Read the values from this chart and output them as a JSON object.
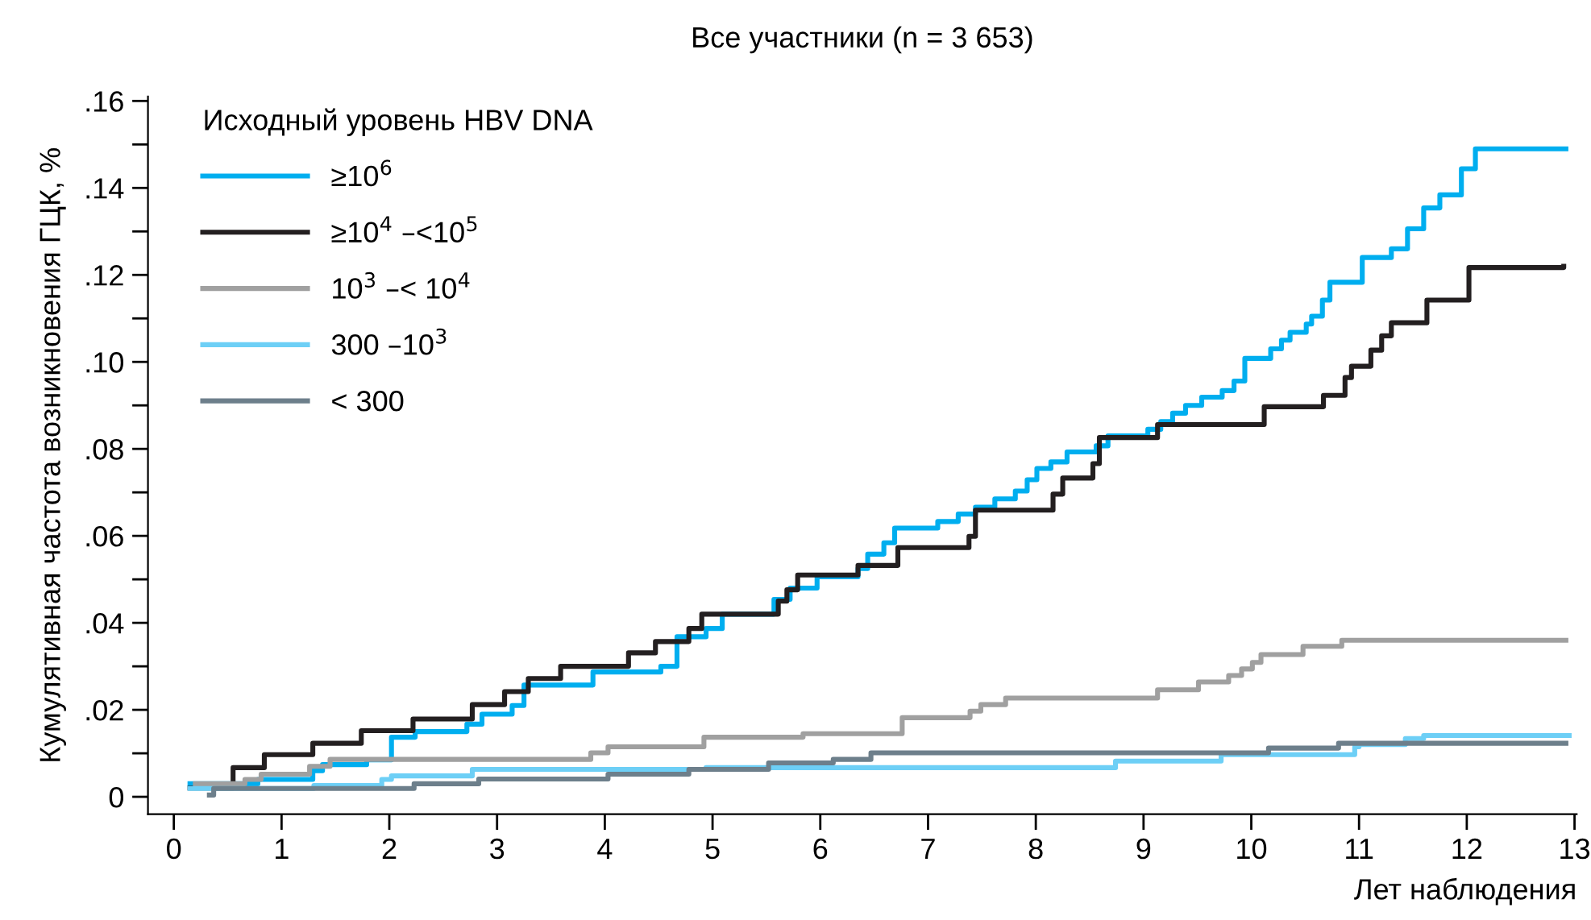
{
  "chart_data": {
    "type": "step",
    "title": "Все участники (n = 3 653)",
    "xlabel": "Лет наблюдения",
    "ylabel": "Кумулятивная частота возникновения ГЦК, %",
    "legend_title": "Исходный уровень HBV DNA",
    "legend": "top left",
    "grid": false,
    "line_style": "solid",
    "marker": "none",
    "xlim": [
      -0.24,
      13.02
    ],
    "xticks": [
      0,
      1,
      2,
      3,
      4,
      5,
      6,
      7,
      8,
      9,
      10,
      11,
      12,
      13
    ],
    "ylim": [
      -0.004,
      0.161
    ],
    "yticks": [
      {
        "value": 0,
        "label": "0"
      },
      {
        "value": 0.01,
        "label": null
      },
      {
        "value": 0.02,
        "label": ".02"
      },
      {
        "value": 0.03,
        "label": null
      },
      {
        "value": 0.04,
        "label": ".04"
      },
      {
        "value": 0.05,
        "label": null
      },
      {
        "value": 0.06,
        "label": ".06"
      },
      {
        "value": 0.07,
        "label": null
      },
      {
        "value": 0.08,
        "label": ".08"
      },
      {
        "value": 0.09,
        "label": null
      },
      {
        "value": 0.1,
        "label": ".10"
      },
      {
        "value": 0.11,
        "label": null
      },
      {
        "value": 0.12,
        "label": ".12"
      },
      {
        "value": 0.13,
        "label": null
      },
      {
        "value": 0.14,
        "label": ".14"
      },
      {
        "value": 0.15,
        "label": null
      },
      {
        "value": 0.16,
        "label": ".16"
      }
    ],
    "series": [
      {
        "name": "≥10$^{6}$",
        "color": "#00aeef",
        "x": [
          0.15,
          0.78,
          1.29,
          1.38,
          1.79,
          2.02,
          2.24,
          2.72,
          2.86,
          3.14,
          3.25,
          3.89,
          4.52,
          4.67,
          4.94,
          5.09,
          5.57,
          5.72,
          5.97,
          6.35,
          6.44,
          6.59,
          6.69,
          7.09,
          7.28,
          7.44,
          7.62,
          7.81,
          7.92,
          8.01,
          8.14,
          8.29,
          8.56,
          8.67,
          9.04,
          9.16,
          9.27,
          9.39,
          9.54,
          9.73,
          9.84,
          9.94,
          10.18,
          10.28,
          10.36,
          10.51,
          10.56,
          10.66,
          10.73,
          11.03,
          11.3,
          11.45,
          11.6,
          11.75,
          11.95,
          12.08,
          12.92
        ],
        "values": [
          0.003,
          0.004,
          0.006,
          0.0074,
          0.0085,
          0.0137,
          0.015,
          0.0167,
          0.019,
          0.021,
          0.0257,
          0.0287,
          0.03,
          0.0368,
          0.0387,
          0.042,
          0.0454,
          0.048,
          0.0506,
          0.0525,
          0.0558,
          0.0584,
          0.0618,
          0.0633,
          0.065,
          0.0666,
          0.0685,
          0.0703,
          0.0729,
          0.0755,
          0.077,
          0.0793,
          0.0807,
          0.083,
          0.0845,
          0.0863,
          0.0882,
          0.09,
          0.0919,
          0.0934,
          0.0956,
          0.1008,
          0.103,
          0.105,
          0.1068,
          0.1087,
          0.1105,
          0.1142,
          0.1183,
          0.124,
          0.126,
          0.1306,
          0.1354,
          0.1384,
          0.1444,
          0.149,
          0.149
        ]
      },
      {
        "name": "≥10$^{4}$ –<10$^{5}$",
        "color": "#231f20",
        "x": [
          0.15,
          0.55,
          0.84,
          1.29,
          1.74,
          2.22,
          2.77,
          3.07,
          3.29,
          3.59,
          4.22,
          4.47,
          4.78,
          4.9,
          5.61,
          5.69,
          5.79,
          6.35,
          6.72,
          7.38,
          7.44,
          8.16,
          8.25,
          8.53,
          8.59,
          9.13,
          10.12,
          10.67,
          10.87,
          10.93,
          11.11,
          11.21,
          11.3,
          11.63,
          12.02,
          12.9
        ],
        "values": [
          0.002,
          0.0067,
          0.0097,
          0.0123,
          0.0152,
          0.0179,
          0.0212,
          0.0242,
          0.0272,
          0.03,
          0.0331,
          0.0357,
          0.0387,
          0.042,
          0.045,
          0.0476,
          0.051,
          0.0532,
          0.0573,
          0.0599,
          0.0659,
          0.0696,
          0.0733,
          0.0766,
          0.0826,
          0.0856,
          0.0897,
          0.0923,
          0.0964,
          0.099,
          0.1027,
          0.106,
          0.109,
          0.1142,
          0.1217,
          0.122
        ]
      },
      {
        "name": "10$^{3}$ –< 10$^{4}$",
        "color": "#a0a0a0",
        "x": [
          0.2,
          0.66,
          0.81,
          1.26,
          1.45,
          3.87,
          4.03,
          4.92,
          5.84,
          6.76,
          7.39,
          7.49,
          7.72,
          9.13,
          9.51,
          9.79,
          9.91,
          10.01,
          10.09,
          10.48,
          10.84,
          12.92
        ],
        "values": [
          0.003,
          0.004,
          0.0052,
          0.007,
          0.0086,
          0.0101,
          0.0115,
          0.0137,
          0.0145,
          0.0182,
          0.0197,
          0.0212,
          0.0227,
          0.0246,
          0.0264,
          0.0279,
          0.0294,
          0.0309,
          0.0327,
          0.0346,
          0.036,
          0.036
        ]
      },
      {
        "name": "300 –10$^{3}$",
        "color": "#6dcff6",
        "x": [
          0.15,
          1.3,
          1.93,
          2.02,
          2.77,
          4.94,
          8.74,
          9.72,
          10.96,
          11.0,
          11.43,
          11.6,
          12.95
        ],
        "values": [
          0.0019,
          0.0026,
          0.004,
          0.0048,
          0.0063,
          0.0067,
          0.0082,
          0.0097,
          0.0115,
          0.012,
          0.0134,
          0.0141,
          0.0141
        ]
      },
      {
        "name": "< 300",
        "color": "#6d7f8b",
        "x": [
          0.33,
          0.37,
          2.23,
          2.83,
          4.03,
          4.78,
          5.52,
          6.12,
          6.47,
          10.16,
          10.81,
          12.92
        ],
        "values": [
          0.0004,
          0.0019,
          0.003,
          0.0041,
          0.0052,
          0.0063,
          0.0078,
          0.0086,
          0.0101,
          0.0112,
          0.0123,
          0.0123
        ]
      }
    ]
  }
}
